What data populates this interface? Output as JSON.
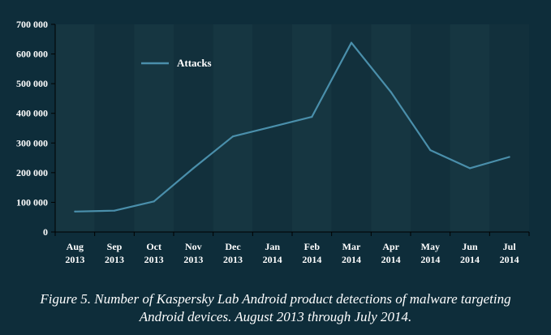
{
  "chart_data": {
    "type": "line",
    "categories": [
      [
        "Aug",
        "2013"
      ],
      [
        "Sep",
        "2013"
      ],
      [
        "Oct",
        "2013"
      ],
      [
        "Nov",
        "2013"
      ],
      [
        "Dec",
        "2013"
      ],
      [
        "Jan",
        "2014"
      ],
      [
        "Feb",
        "2014"
      ],
      [
        "Mar",
        "2014"
      ],
      [
        "Apr",
        "2014"
      ],
      [
        "May",
        "2014"
      ],
      [
        "Jun",
        "2014"
      ],
      [
        "Jul",
        "2014"
      ]
    ],
    "series": [
      {
        "name": "Attacks",
        "values": [
          69000,
          72000,
          103000,
          215000,
          322000,
          355000,
          388000,
          638000,
          472000,
          276000,
          215000,
          253000
        ]
      }
    ],
    "ylim": [
      0,
      700000
    ],
    "yticks": [
      0,
      100000,
      200000,
      300000,
      400000,
      500000,
      600000,
      700000
    ],
    "ytick_labels": [
      "0",
      "100 000",
      "200 000",
      "300 000",
      "400 000",
      "500 000",
      "600 000",
      "700 000"
    ],
    "legend_position": "top-left",
    "grid": false,
    "colors": {
      "background": "#0e2d3a",
      "plot_band_light": "#163641",
      "plot_band_dark": "#12303c",
      "line": "#4a8fab",
      "axis": "#000000",
      "text": "#ffffff"
    }
  },
  "caption": {
    "line1": "Figure 5. Number of Kaspersky Lab Android product detections of malware targeting",
    "line2": "Android devices. August 2013 through July 2014."
  }
}
